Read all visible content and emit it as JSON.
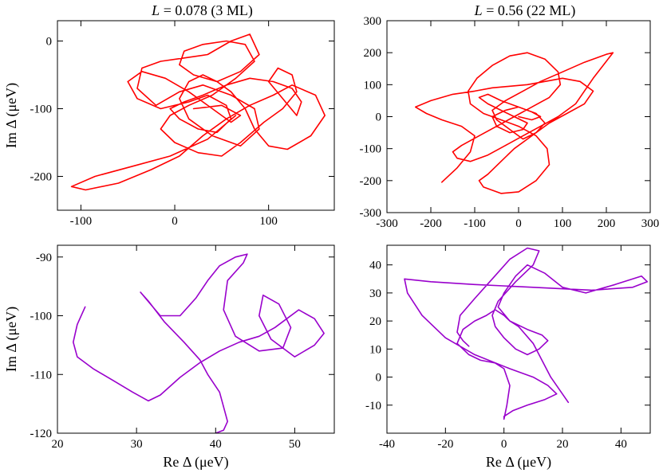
{
  "colors": {
    "red": "#ff0000",
    "purple": "#9900cc"
  },
  "chart_data": [
    {
      "type": "line",
      "panel": "top-left",
      "title": "L = 0.078 (3 ML)",
      "title_var": "L",
      "title_rest": " = 0.078 (3 ML)",
      "xlabel": "",
      "ylabel": "Im Δ (μeV)",
      "xlim": [
        -125,
        170
      ],
      "ylim": [
        -250,
        30
      ],
      "xticks": [
        -100,
        0,
        100
      ],
      "yticks": [
        -200,
        -100,
        0
      ],
      "color_key": "red",
      "series": [
        {
          "name": "trajectory-3ml",
          "x": [
            65,
            35,
            -5,
            -45,
            -85,
            -110,
            -95,
            -60,
            -25,
            5,
            30,
            55,
            80,
            105,
            125,
            150,
            160,
            145,
            120,
            100,
            85,
            75,
            60,
            45,
            30,
            15,
            5,
            15,
            40,
            70,
            90,
            85,
            60,
            30,
            5,
            -20,
            -40,
            -35,
            -15,
            10,
            35,
            60,
            80,
            90,
            70,
            45,
            20,
            5,
            10,
            30,
            55,
            75,
            85,
            65,
            40,
            15,
            -5,
            -15,
            0,
            25,
            50,
            70,
            95,
            115,
            130,
            125,
            110,
            100,
            115,
            130,
            135,
            125,
            105,
            80,
            55,
            30,
            10,
            -5,
            5,
            25,
            45,
            60,
            55,
            35,
            15,
            -15,
            -40,
            -50,
            -35,
            -10,
            15,
            40,
            60,
            70,
            50,
            20
          ],
          "y": [
            -110,
            -145,
            -170,
            -185,
            -200,
            -215,
            -220,
            -210,
            -190,
            -170,
            -140,
            -115,
            -95,
            -80,
            -65,
            -80,
            -110,
            -140,
            -160,
            -155,
            -130,
            -100,
            -75,
            -60,
            -50,
            -60,
            -85,
            -115,
            -140,
            -155,
            -130,
            -100,
            -80,
            -65,
            -75,
            -95,
            -70,
            -40,
            -30,
            -25,
            -20,
            0,
            10,
            -20,
            -45,
            -60,
            -50,
            -35,
            -15,
            -5,
            0,
            -5,
            -30,
            -55,
            -80,
            -95,
            -110,
            -130,
            -150,
            -165,
            -170,
            -150,
            -120,
            -100,
            -75,
            -50,
            -40,
            -60,
            -85,
            -110,
            -90,
            -70,
            -60,
            -55,
            -65,
            -80,
            -90,
            -100,
            -115,
            -130,
            -135,
            -115,
            -95,
            -80,
            -90,
            -100,
            -85,
            -60,
            -45,
            -55,
            -75,
            -100,
            -120,
            -110,
            -95,
            -100
          ]
        }
      ]
    },
    {
      "type": "line",
      "panel": "top-right",
      "title": "L = 0.56 (22 ML)",
      "title_var": "L",
      "title_rest": " = 0.56 (22 ML)",
      "xlabel": "",
      "ylabel": "",
      "xlim": [
        -300,
        300
      ],
      "ylim": [
        -300,
        300
      ],
      "xticks": [
        -300,
        -200,
        -100,
        0,
        100,
        200,
        300
      ],
      "yticks": [
        -300,
        -200,
        -100,
        0,
        100,
        200,
        300
      ],
      "color_key": "red",
      "series": [
        {
          "name": "trajectory-22ml",
          "x": [
            -175,
            -140,
            -110,
            -100,
            -130,
            -175,
            -210,
            -235,
            -200,
            -150,
            -100,
            -60,
            -20,
            20,
            60,
            100,
            140,
            170,
            150,
            110,
            70,
            30,
            -10,
            -40,
            -70,
            -90,
            -80,
            -40,
            0,
            40,
            70,
            65,
            40,
            0,
            -40,
            -80,
            -110,
            -115,
            -95,
            -60,
            -20,
            20,
            60,
            90,
            95,
            70,
            30,
            -10,
            -50,
            -90,
            -130,
            -150,
            -140,
            -110,
            -70,
            -30,
            10,
            50,
            90,
            130,
            170,
            215,
            200,
            150,
            100,
            50,
            10,
            -30,
            -60,
            -50,
            -20,
            10,
            40,
            60,
            40,
            0,
            -40,
            -70,
            -90,
            -70,
            -40,
            -10,
            20,
            10,
            -20,
            -50,
            -60,
            -30,
            0,
            30,
            50,
            30,
            0
          ],
          "y": [
            -205,
            -160,
            -110,
            -60,
            -30,
            -10,
            10,
            30,
            50,
            70,
            80,
            90,
            95,
            100,
            110,
            120,
            110,
            80,
            40,
            10,
            -20,
            -60,
            -100,
            -140,
            -180,
            -200,
            -220,
            -240,
            -235,
            -200,
            -150,
            -100,
            -60,
            -30,
            -10,
            10,
            40,
            80,
            120,
            160,
            190,
            200,
            180,
            140,
            100,
            60,
            30,
            0,
            -30,
            -60,
            -90,
            -110,
            -130,
            -140,
            -120,
            -90,
            -60,
            -30,
            0,
            40,
            120,
            200,
            195,
            170,
            140,
            110,
            80,
            50,
            20,
            -10,
            -40,
            -70,
            -50,
            -20,
            10,
            30,
            50,
            70,
            60,
            40,
            20,
            0,
            -20,
            -40,
            -50,
            -30,
            0,
            20,
            30,
            15,
            0,
            -10,
            0
          ]
        }
      ]
    },
    {
      "type": "line",
      "panel": "bottom-left",
      "title": "",
      "xlabel": "Re Δ (μeV)",
      "ylabel": "Im Δ (μeV)",
      "xlim": [
        20,
        55
      ],
      "ylim": [
        -120,
        -88
      ],
      "xticks": [
        20,
        30,
        40,
        50
      ],
      "yticks": [
        -120,
        -110,
        -100,
        -90
      ],
      "color_key": "purple",
      "series": [
        {
          "name": "trajectory-zoom-3ml",
          "x": [
            23.5,
            22.5,
            22.0,
            22.5,
            24.5,
            27.0,
            29.5,
            31.5,
            33.0,
            35.5,
            38.0,
            40.5,
            43.0,
            45.5,
            47.5,
            49.0,
            50.5,
            52.5,
            53.7,
            52.5,
            50.0,
            47.0,
            45.5,
            46.0,
            48.0,
            49.5,
            48.5,
            45.5,
            42.5,
            41.0,
            41.5,
            43.5,
            44.0,
            42.5,
            40.5,
            39.0,
            37.5,
            35.5,
            33.0,
            30.5,
            31.5,
            33.5,
            36.0,
            38.0,
            39.0,
            40.5,
            41.0,
            41.5,
            41.0,
            40.0
          ],
          "y": [
            -98.5,
            -101.5,
            -104.5,
            -107.0,
            -109.0,
            -111.0,
            -113.0,
            -114.5,
            -113.5,
            -110.5,
            -108.0,
            -106.0,
            -104.5,
            -103.5,
            -102.0,
            -100.5,
            -99.0,
            -100.5,
            -103.0,
            -105.0,
            -107.0,
            -104.0,
            -100.0,
            -96.5,
            -98.0,
            -102.0,
            -105.5,
            -106.0,
            -103.5,
            -99.0,
            -94.0,
            -91.0,
            -89.5,
            -90.0,
            -91.5,
            -94.0,
            -97.0,
            -100.0,
            -100.0,
            -96.0,
            -97.5,
            -101.0,
            -104.5,
            -107.5,
            -110.0,
            -113.0,
            -115.5,
            -118.0,
            -119.5,
            -120.0
          ]
        }
      ]
    },
    {
      "type": "line",
      "panel": "bottom-right",
      "title": "",
      "xlabel": "Re Δ (μeV)",
      "ylabel": "",
      "xlim": [
        -40,
        50
      ],
      "ylim": [
        -20,
        47
      ],
      "xticks": [
        -40,
        -20,
        0,
        20,
        40
      ],
      "yticks": [
        -10,
        0,
        10,
        20,
        30,
        40
      ],
      "color_key": "purple",
      "series": [
        {
          "name": "trajectory-zoom-22ml",
          "x": [
            -12,
            -14,
            -16,
            -15,
            -10,
            -4,
            2,
            8,
            12,
            10,
            4,
            -2,
            -4,
            -3,
            0,
            4,
            8,
            12,
            15,
            13,
            8,
            2,
            -2,
            0,
            4,
            8,
            14,
            20,
            28,
            38,
            47,
            49,
            44,
            30,
            10,
            -10,
            -25,
            -34,
            -33,
            -28,
            -20,
            -10,
            2,
            10,
            15,
            18,
            14,
            8,
            3,
            0,
            0,
            1,
            2,
            0,
            -3,
            -8,
            -12,
            -16,
            -14,
            -10,
            -6,
            -3,
            0,
            2,
            5,
            10,
            16,
            22
          ],
          "y": [
            11,
            13,
            16,
            22,
            28,
            35,
            42,
            46,
            45,
            40,
            34,
            27,
            22,
            18,
            14,
            10,
            8,
            10,
            13,
            15,
            17,
            20,
            25,
            30,
            36,
            40,
            37,
            32,
            30,
            33,
            36,
            34,
            32,
            31,
            32,
            33,
            34,
            35,
            30,
            22,
            14,
            8,
            3,
            0,
            -3,
            -6,
            -8,
            -10,
            -12,
            -14,
            -15,
            -10,
            -3,
            3,
            5,
            6,
            8,
            12,
            17,
            20,
            22,
            24,
            22,
            20,
            18,
            12,
            0,
            -9
          ]
        }
      ]
    }
  ]
}
